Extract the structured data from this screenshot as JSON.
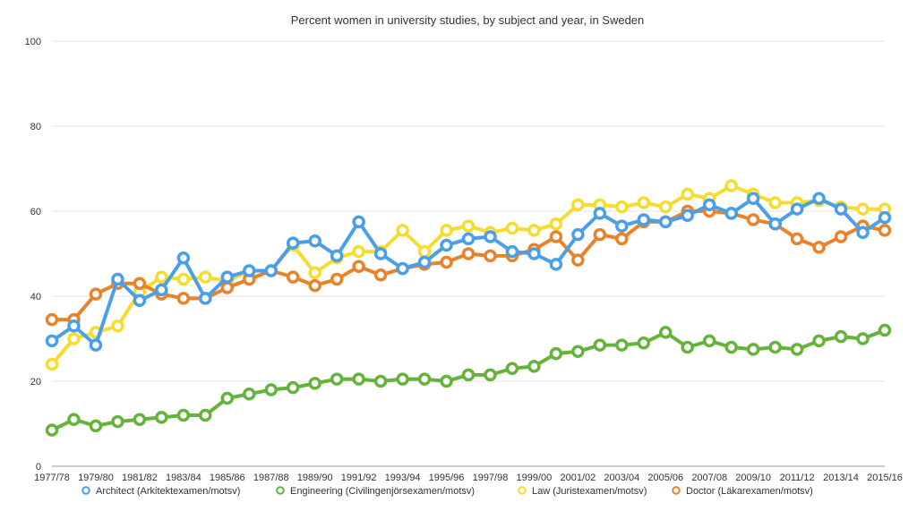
{
  "chart_data": {
    "type": "line",
    "title": "Percent women in university studies, by subject and year, in Sweden",
    "xlabel": "",
    "ylabel": "",
    "ylim": [
      0,
      100
    ],
    "yticks": [
      0,
      20,
      40,
      60,
      80,
      100
    ],
    "grid": true,
    "legend_position": "bottom",
    "x": [
      "1977/78",
      "1978/79",
      "1979/80",
      "1980/81",
      "1981/82",
      "1982/83",
      "1983/84",
      "1984/85",
      "1985/86",
      "1986/87",
      "1987/88",
      "1988/89",
      "1989/90",
      "1990/91",
      "1991/92",
      "1992/93",
      "1993/94",
      "1994/95",
      "1995/96",
      "1996/97",
      "1997/98",
      "1998/99",
      "1999/00",
      "2000/01",
      "2001/02",
      "2002/03",
      "2003/04",
      "2004/05",
      "2005/06",
      "2006/07",
      "2007/08",
      "2008/09",
      "2009/10",
      "2010/11",
      "2011/12",
      "2012/13",
      "2013/14",
      "2014/15",
      "2015/16"
    ],
    "x_tick_labels": [
      "1977/78",
      "1979/80",
      "1981/82",
      "1983/84",
      "1985/86",
      "1987/88",
      "1989/90",
      "1991/92",
      "1993/94",
      "1995/96",
      "1997/98",
      "1999/00",
      "2001/02",
      "2003/04",
      "2005/06",
      "2007/08",
      "2009/10",
      "2011/12",
      "2013/14",
      "2015/16"
    ],
    "series": [
      {
        "name": "Law (Juristexamen/motsv)",
        "color": "#f6dc2c",
        "values": [
          24,
          30,
          31.5,
          33,
          41,
          44.5,
          44,
          44.5,
          43.5,
          46,
          46,
          52,
          45.5,
          49,
          50.5,
          50.5,
          55.5,
          50.5,
          55.5,
          56.5,
          55,
          56,
          55.5,
          57,
          61.5,
          61.5,
          61,
          62,
          61,
          64,
          63,
          66,
          64,
          62,
          62,
          62.5,
          61,
          60.5,
          60.5
        ]
      },
      {
        "name": "Doctor (Läkarexamen/motsv)",
        "color": "#e8832a",
        "values": [
          34.5,
          34.5,
          40.5,
          43,
          43,
          40.5,
          39.5,
          39.5,
          42,
          44,
          46,
          44.5,
          42.5,
          44,
          47,
          45,
          46.5,
          47.5,
          48,
          50,
          49.5,
          49.5,
          51,
          54,
          48.5,
          54.5,
          53.5,
          57.5,
          57.5,
          60,
          60,
          59.5,
          58,
          57,
          53.5,
          51.5,
          54,
          56.5,
          55.5
        ]
      },
      {
        "name": "Architect (Arkitektexamen/motsv)",
        "color": "#4a9fe8",
        "values": [
          29.5,
          33,
          28.5,
          44,
          39,
          41.5,
          49,
          39.5,
          44.5,
          46,
          46,
          52.5,
          53,
          49.5,
          57.5,
          50,
          46.5,
          48,
          52,
          53.5,
          54,
          50.5,
          50,
          47.5,
          54.5,
          59.5,
          56.5,
          58,
          57.5,
          59,
          61.5,
          59.5,
          63,
          57,
          60.5,
          63,
          60.5,
          55,
          58.5
        ]
      },
      {
        "name": "Engineering (Civilingenjörsexamen/motsv)",
        "color": "#66b33c",
        "values": [
          8.5,
          11,
          9.5,
          10.5,
          11,
          11.5,
          12,
          12,
          16,
          17,
          18,
          18.5,
          19.5,
          20.5,
          20.5,
          20,
          20.5,
          20.5,
          20,
          21.5,
          21.5,
          23,
          23.5,
          26.5,
          27,
          28.5,
          28.5,
          29,
          31.5,
          28,
          29.5,
          28,
          27.5,
          28,
          27.5,
          29.5,
          30.5,
          30,
          32
        ]
      }
    ],
    "legend": [
      {
        "name": "Architect (Arkitektexamen/motsv)",
        "color": "#4a9fe8"
      },
      {
        "name": "Engineering (Civilingenjörsexamen/motsv)",
        "color": "#66b33c"
      },
      {
        "name": "Law (Juristexamen/motsv)",
        "color": "#f6dc2c"
      },
      {
        "name": "Doctor (Läkarexamen/motsv)",
        "color": "#e8832a"
      }
    ]
  }
}
